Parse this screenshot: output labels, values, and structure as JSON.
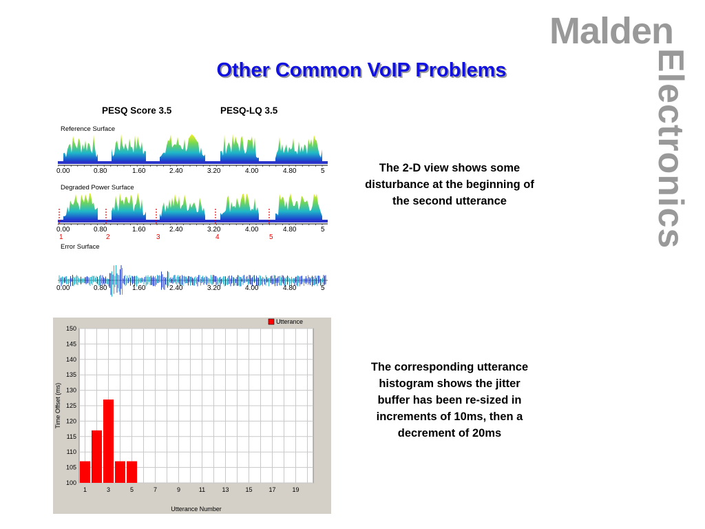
{
  "brand": {
    "line1": "Malden",
    "line2": "Electronics",
    "color": "#999999"
  },
  "title": "Other Common VoIP Problems",
  "pesq": {
    "score": "PESQ Score 3.5",
    "lq": "PESQ-LQ 3.5"
  },
  "surfaces": {
    "reference_label": "Reference Surface",
    "degraded_label": "Degraded Power Surface",
    "error_label": "Error Surface",
    "ticks": [
      "0.00",
      "0.80",
      "1.60",
      "2.40",
      "3.20",
      "4.00",
      "4.80",
      "5"
    ],
    "markers": [
      "1",
      "2",
      "3",
      "4",
      "5"
    ]
  },
  "notes": {
    "top": "The 2-D view shows some disturbance at the beginning of the second utterance",
    "bottom": "The corresponding utterance histogram shows the jitter buffer has been re-sized in increments of 10ms, then a decrement of 20ms"
  },
  "chart_data": {
    "type": "bar",
    "title": "",
    "legend": "Utterance",
    "legend_placement": "top-right",
    "xlabel": "Utterance Number",
    "ylabel": "Time Offset (ms)",
    "ylim": [
      100,
      150
    ],
    "ytick_labels": [
      "100",
      "105",
      "110",
      "115",
      "120",
      "125",
      "130",
      "135",
      "140",
      "145",
      "150"
    ],
    "xtick_labels": [
      "1",
      "3",
      "5",
      "7",
      "9",
      "11",
      "13",
      "15",
      "17",
      "19"
    ],
    "categories": [
      1,
      2,
      3,
      4,
      5
    ],
    "values": [
      107,
      117,
      127,
      107,
      107
    ],
    "xlim": [
      1,
      20
    ],
    "grid": true,
    "bar_color": "#ff0000"
  }
}
